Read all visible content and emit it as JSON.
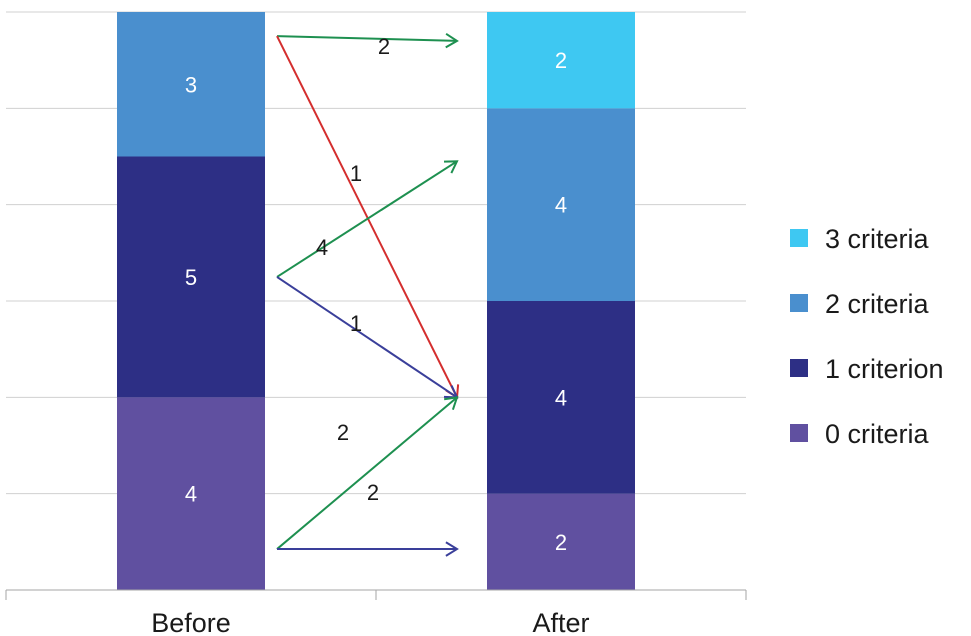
{
  "chart_data": {
    "type": "bar",
    "stacked": true,
    "categories": [
      "Before",
      "After"
    ],
    "series": [
      {
        "name": "0 criteria",
        "color": "#6050a0",
        "values": [
          4,
          2
        ]
      },
      {
        "name": "1 criterion",
        "color": "#2d2f85",
        "values": [
          5,
          4
        ]
      },
      {
        "name": "2 criteria",
        "color": "#4a8fce",
        "values": [
          3,
          4
        ]
      },
      {
        "name": "3 criteria",
        "color": "#3ec8f2",
        "values": [
          0,
          2
        ]
      }
    ],
    "ylim": [
      0,
      12
    ],
    "grid": true,
    "legend_position": "right",
    "legend_order": [
      "3 criteria",
      "2 criteria",
      "1 criterion",
      "0 criteria"
    ],
    "flows": [
      {
        "from": "2 criteria",
        "to": "3 criteria",
        "value": "2",
        "color": "#1e9050"
      },
      {
        "from": "2 criteria",
        "to": "1 criterion",
        "value": "1",
        "color": "#d42e2e"
      },
      {
        "from": "1 criterion",
        "to": "2 criteria",
        "value": "4",
        "color": "#1e9050"
      },
      {
        "from": "1 criterion",
        "to": "1 criterion",
        "value": "1",
        "color": "#3a3f9a"
      },
      {
        "from": "0 criteria",
        "to": "1 criterion",
        "value": "2",
        "color": "#1e9050"
      },
      {
        "from": "0 criteria",
        "to": "0 criteria",
        "value": "2",
        "color": "#3a3f9a"
      }
    ]
  }
}
